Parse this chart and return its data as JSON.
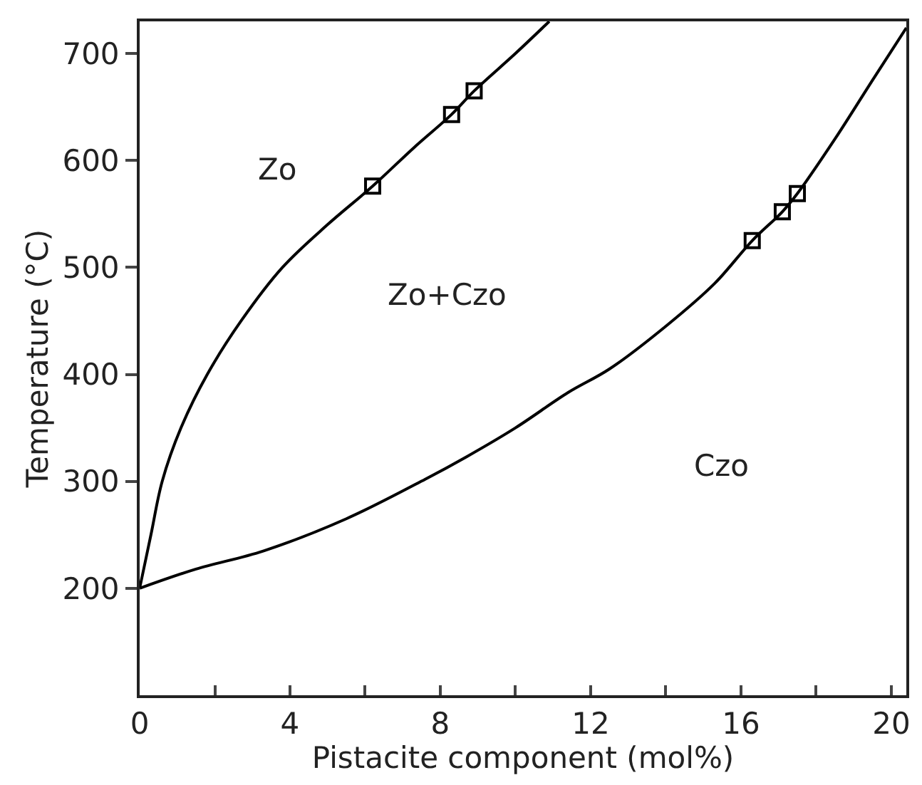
{
  "chart_data": {
    "type": "line",
    "xlabel": "Pistacite component (mol%)",
    "ylabel": "Temperature (°C)",
    "xlim": [
      0,
      20.4
    ],
    "ylim": [
      100,
      730
    ],
    "xticks": [
      0,
      {
        "value": 2,
        "label": null
      },
      4,
      {
        "value": 6,
        "label": null
      },
      8,
      {
        "value": 10,
        "label": null
      },
      12,
      {
        "value": 14,
        "label": null
      },
      16,
      {
        "value": 18,
        "label": null
      },
      20
    ],
    "yticks": [
      200,
      300,
      400,
      500,
      600,
      700
    ],
    "series": [
      {
        "color": "#000000",
        "marker": "none",
        "x": [
          0,
          0.3,
          0.6,
          1.1,
          1.8,
          2.7,
          3.8,
          5.0,
          6.2,
          7.3,
          8.3,
          8.9,
          10.0,
          10.9
        ],
        "values": [
          200,
          250,
          300,
          350,
          400,
          450,
          500,
          540,
          576,
          612,
          643,
          665,
          700,
          730
        ]
      },
      {
        "color": "#000000",
        "marker": "none",
        "x": [
          0,
          1.5,
          3.3,
          5.5,
          7.6,
          8.7,
          10,
          11.4,
          12.5,
          14,
          15.3,
          16.3,
          17.1,
          17.5,
          18.5,
          19.5,
          20.4
        ],
        "values": [
          200,
          218,
          235,
          265,
          302,
          323,
          350,
          383,
          405,
          445,
          485,
          525,
          552,
          569,
          620,
          675,
          724
        ]
      },
      {
        "type": "scatter",
        "color": "#000000",
        "marker": "square",
        "x": [
          6.2,
          8.3,
          8.9,
          16.3,
          17.1,
          17.5
        ],
        "values": [
          576,
          643,
          665,
          525,
          552,
          569
        ]
      }
    ],
    "annotations": [
      "Zo",
      "Zo+Czo",
      "Czo"
    ]
  }
}
